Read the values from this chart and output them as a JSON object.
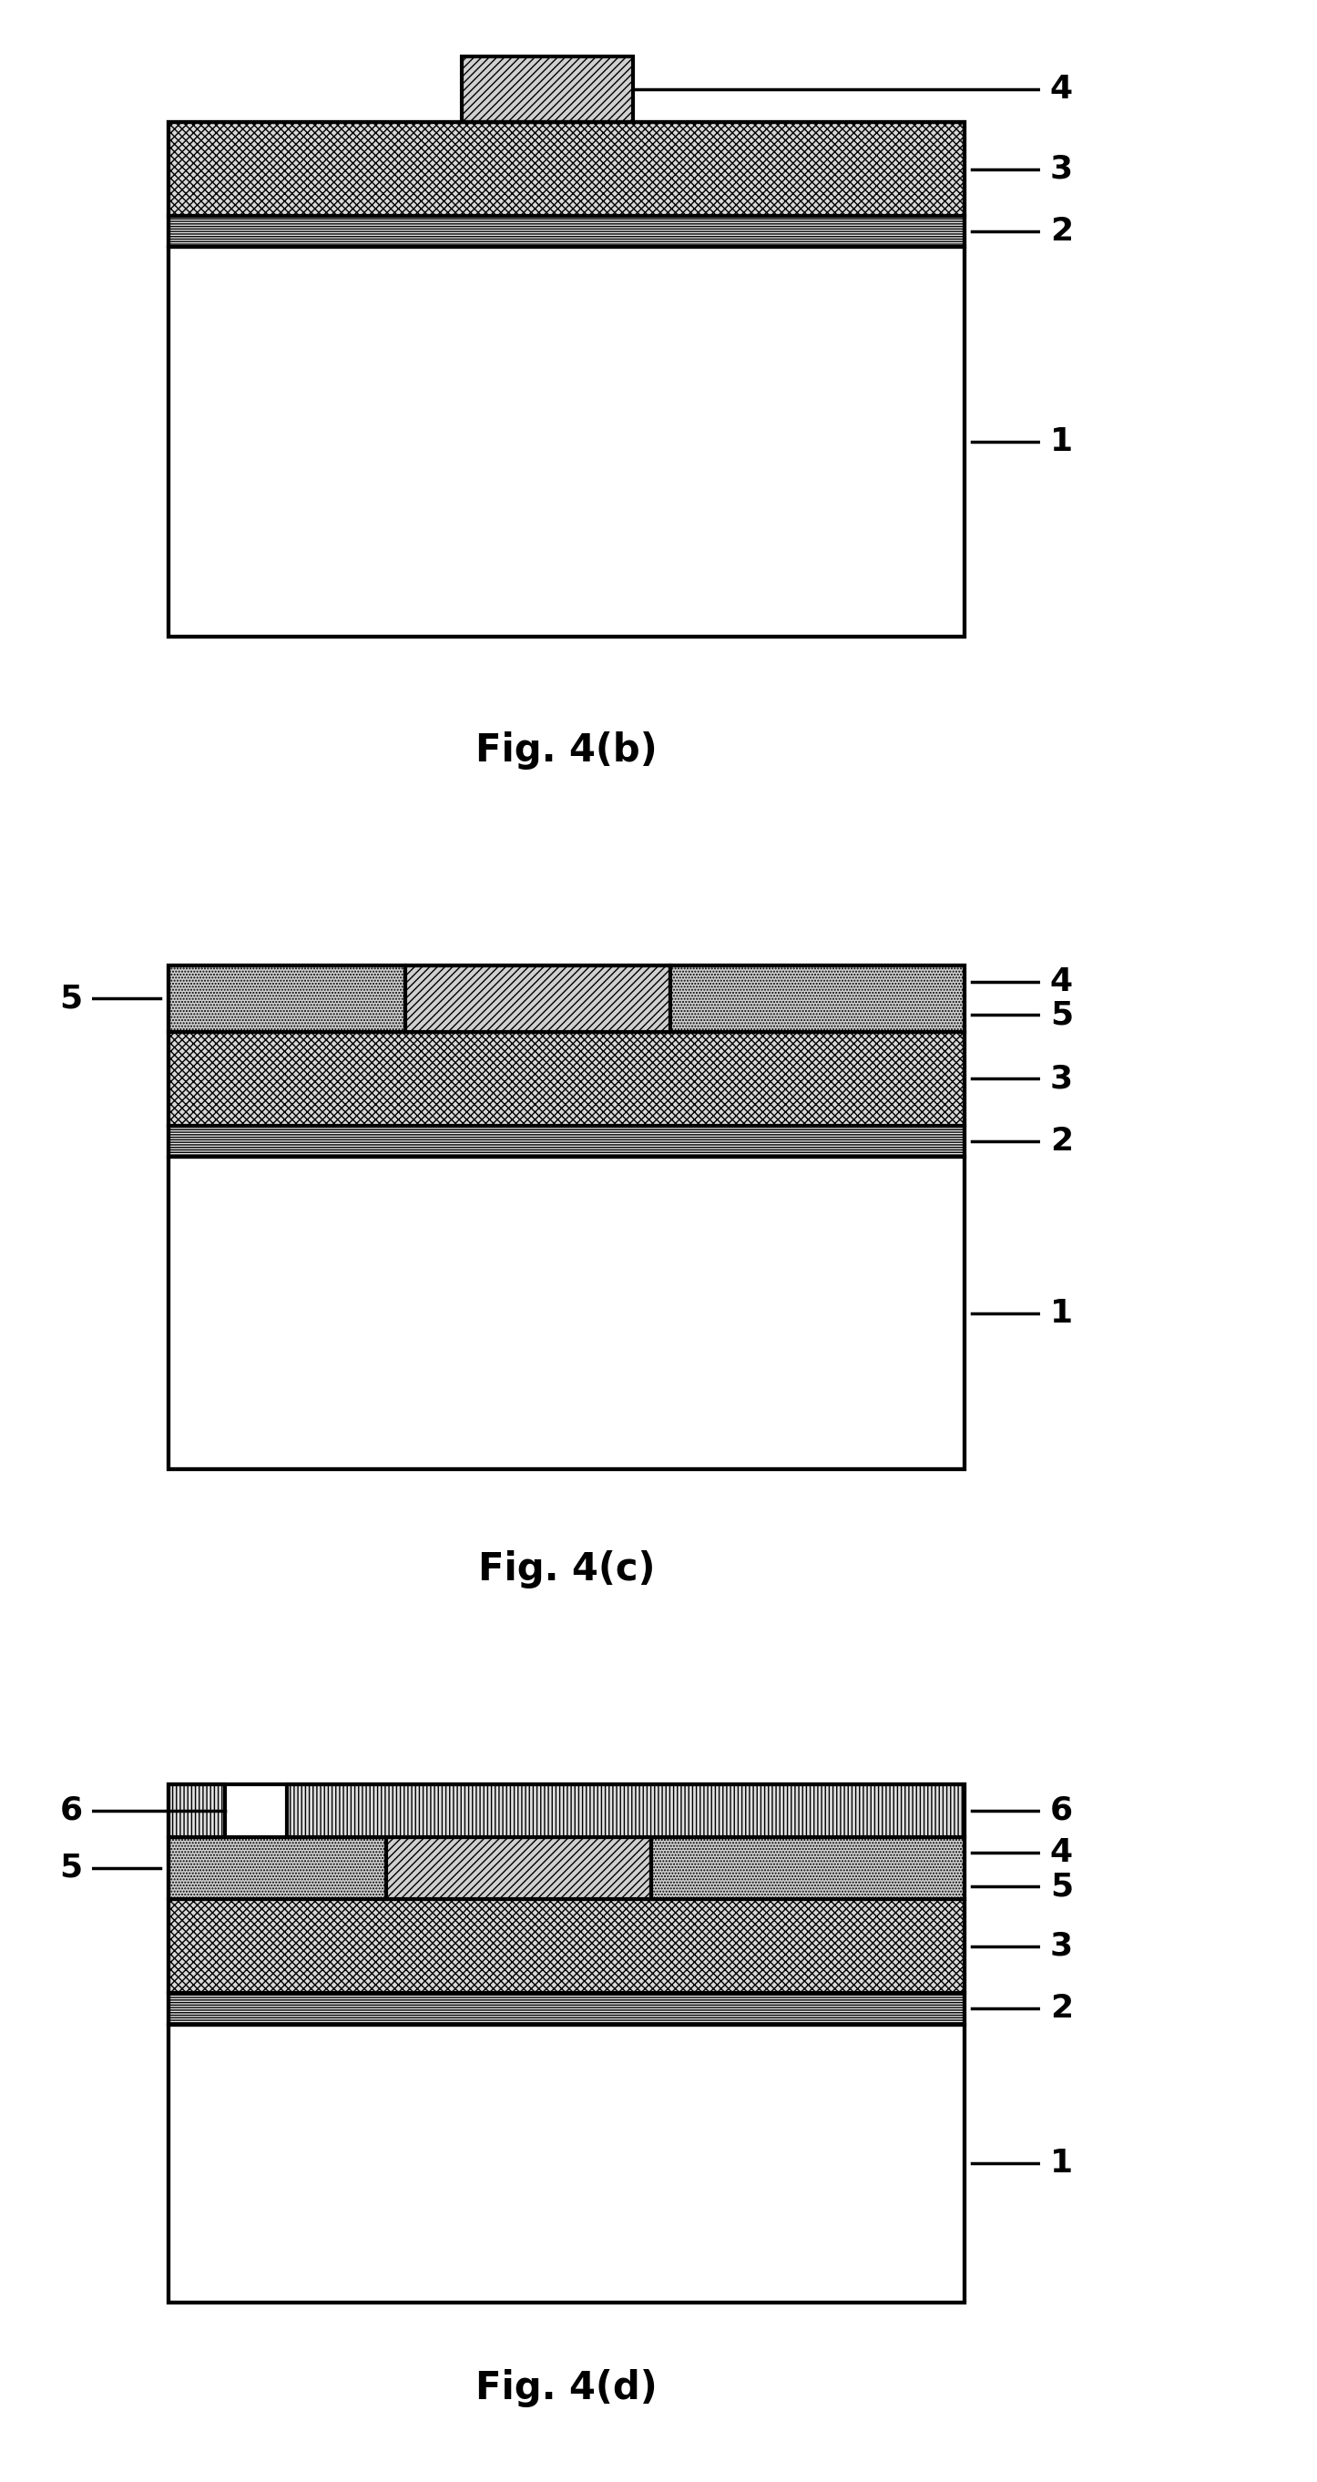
{
  "fig_width": 14.46,
  "fig_height": 27.25,
  "bg_color": "#ffffff",
  "line_color": "#000000",
  "lw": 3.0,
  "label_fontsize": 26,
  "caption_fontsize": 30,
  "caption_fontweight": "bold",
  "figures": [
    "Fig. 4(b)",
    "Fig. 4(c)",
    "Fig. 4(d)"
  ],
  "hatch_crosshatch": "xxxx",
  "hatch_horizontal": "-----",
  "hatch_diagonal": "////",
  "hatch_dotted": ".....",
  "hatch_vertical": "||||",
  "color_substrate": "#ffffff",
  "color_crosshatch": "#d8d8d8",
  "color_hlines": "#e8e8e8",
  "color_diag": "#d0d0d0",
  "color_stipple": "#d0d0d0",
  "color_vlines": "#e0e0e0"
}
